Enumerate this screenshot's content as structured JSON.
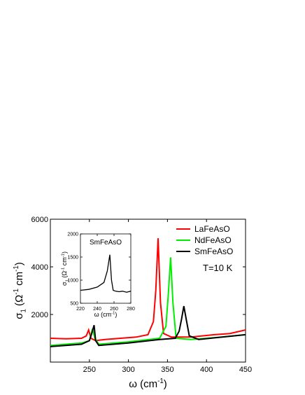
{
  "chart_data": [
    {
      "type": "line",
      "x_label": [
        "ω (cm",
        "-1",
        ")"
      ],
      "y_label": [
        "σ",
        "1",
        " (Ω",
        "-1",
        " cm",
        "-1",
        ")"
      ],
      "annotation": "T=10 K",
      "xlim": [
        200,
        450
      ],
      "xticks": [
        250,
        300,
        350,
        400,
        450
      ],
      "ylim": [
        0,
        6000
      ],
      "yticks": [
        2000,
        4000,
        6000
      ],
      "legend": "upper right",
      "series": [
        {
          "name": "LaFeAsO",
          "color": "#ff0000",
          "x": [
            200,
            220,
            240,
            246,
            249,
            252,
            258,
            270,
            290,
            310,
            325,
            332,
            335,
            338,
            341,
            345,
            355,
            380,
            410,
            430,
            450
          ],
          "values": [
            1000,
            980,
            1000,
            1100,
            1350,
            1000,
            900,
            950,
            1000,
            1050,
            1150,
            1700,
            3000,
            5200,
            2500,
            1200,
            1050,
            1050,
            1150,
            1200,
            1350
          ]
        },
        {
          "name": "NdFeAsO",
          "color": "#00ee00",
          "x": [
            200,
            240,
            250,
            254,
            257,
            262,
            300,
            340,
            348,
            351,
            354,
            357,
            361,
            380,
            420,
            450
          ],
          "values": [
            700,
            800,
            900,
            1400,
            1000,
            750,
            850,
            1000,
            1500,
            2800,
            4400,
            2500,
            1000,
            950,
            1050,
            1150
          ]
        },
        {
          "name": "SmFeAsO",
          "color": "#000000",
          "x": [
            200,
            240,
            250,
            253,
            256,
            258,
            262,
            300,
            340,
            360,
            365,
            368,
            371,
            374,
            378,
            390,
            420,
            450
          ],
          "values": [
            650,
            750,
            900,
            1200,
            1550,
            900,
            700,
            800,
            950,
            1000,
            1300,
            1800,
            2350,
            1800,
            1100,
            950,
            1050,
            1150
          ]
        }
      ]
    },
    {
      "type": "line",
      "title": "SmFeAsO",
      "x_label": [
        "ω (cm",
        "-1",
        ")"
      ],
      "y_label": [
        "σ",
        "1",
        " (Ω",
        "-1",
        " cm",
        "-1",
        ")"
      ],
      "xlim": [
        220,
        280
      ],
      "xticks": [
        220,
        240,
        260,
        280
      ],
      "ylim": [
        500,
        2000
      ],
      "yticks": [
        500,
        1000,
        1500,
        2000
      ],
      "series": [
        {
          "color": "#000000",
          "x": [
            220,
            230,
            240,
            248,
            252,
            255,
            257,
            259,
            262,
            266,
            270,
            275,
            280
          ],
          "values": [
            780,
            800,
            850,
            950,
            1200,
            1550,
            1000,
            780,
            760,
            750,
            760,
            740,
            760
          ]
        }
      ]
    }
  ]
}
